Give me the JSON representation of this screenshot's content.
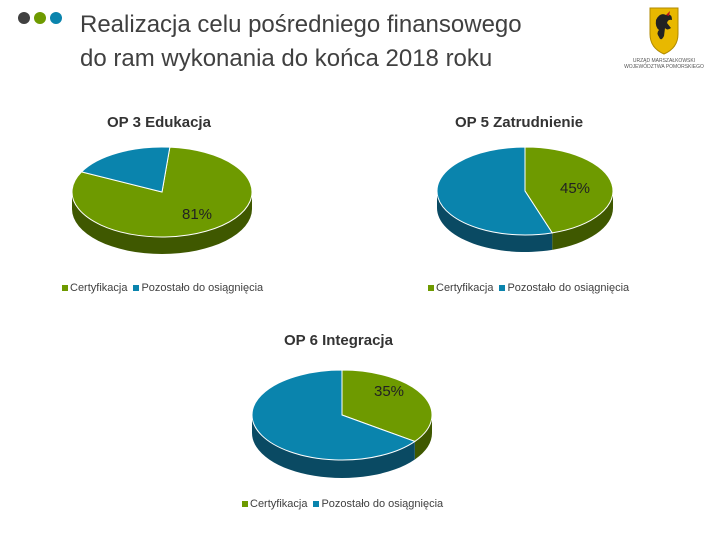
{
  "page": {
    "title_line1": "Realizacja celu pośredniego finansowego",
    "title_line2": "do ram wykonania do końca 2018 roku"
  },
  "logo": {
    "line1": "URZĄD MARSZAŁKOWSKI",
    "line2": "WOJEWÓDZTWA POMORSKIEGO",
    "icon": "griffin-emblem-icon"
  },
  "colors": {
    "certyfikacja": "#6e9a00",
    "certyfikacja_side": "#3f5800",
    "pozostalo": "#0a84ad",
    "pozostalo_side": "#0a4a63",
    "dot1": "#404040",
    "dot2": "#6e9a00",
    "dot3": "#0a84ad"
  },
  "chart_data": [
    {
      "type": "pie",
      "title": "OP 3 Edukacja",
      "categories": [
        "Certyfikacja",
        "Pozostało do osiągnięcia"
      ],
      "values": [
        81,
        19
      ],
      "data_label": "81%",
      "legend": "bottom"
    },
    {
      "type": "pie",
      "title": "OP 5 Zatrudnienie",
      "categories": [
        "Certyfikacja",
        "Pozostało do osiągnięcia"
      ],
      "values": [
        45,
        55
      ],
      "data_label": "45%",
      "legend": "bottom"
    },
    {
      "type": "pie",
      "title": "OP 6 Integracja",
      "categories": [
        "Certyfikacja",
        "Pozostało do osiągnięcia"
      ],
      "values": [
        35,
        65
      ],
      "data_label": "35%",
      "legend": "bottom"
    }
  ]
}
